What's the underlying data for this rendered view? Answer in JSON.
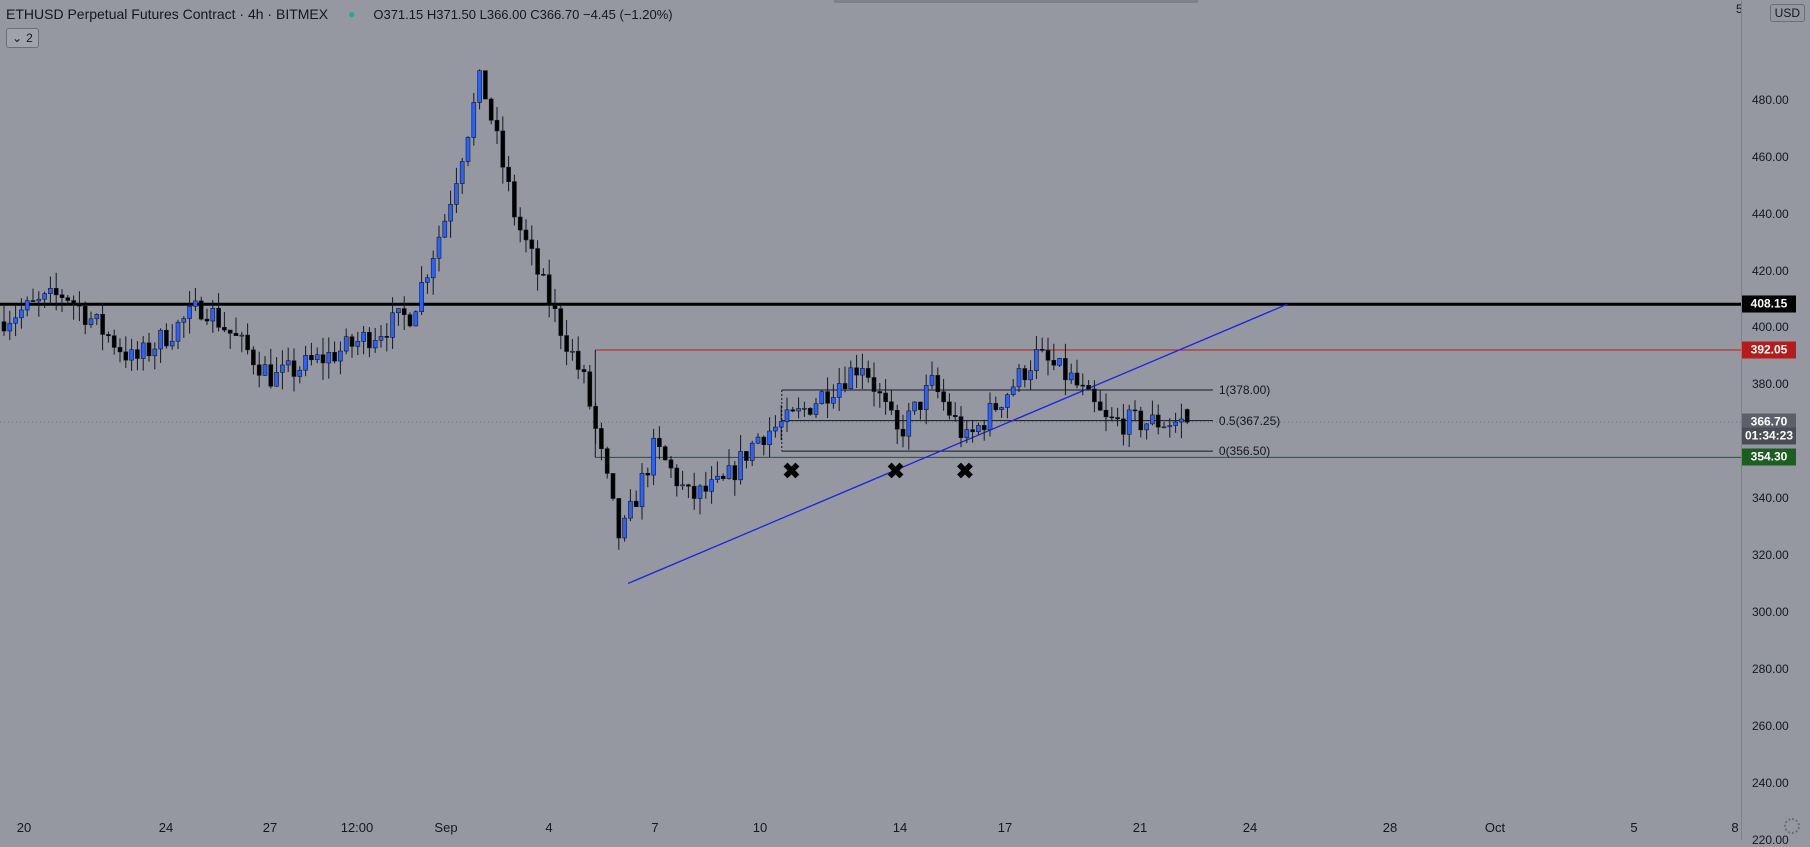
{
  "header": {
    "symbol_title": "ETHUSD Perpetual Futures Contract · 4h · BITMEX",
    "ohlc": "O371.15 H371.50 L366.00 C366.70 −4.45 (−1.20%)",
    "indicator_count": "2",
    "top_axis_cut": "5"
  },
  "price_axis": {
    "currency": "USD",
    "ticks": [
      "480.00",
      "460.00",
      "440.00",
      "420.00",
      "400.00",
      "380.00",
      "340.00",
      "320.00",
      "300.00",
      "280.00",
      "260.00",
      "240.00",
      "220.00"
    ]
  },
  "price_tags": [
    {
      "value": "408.15",
      "bg": "#000000",
      "price": 408.15
    },
    {
      "value": "392.05",
      "bg": "#b71c1c",
      "price": 392.05
    },
    {
      "value": "366.70",
      "bg": "#5d606b",
      "price": 366.7
    },
    {
      "value": "01:34:23",
      "bg": "#4a4d56",
      "price": 362.0
    },
    {
      "value": "354.30",
      "bg": "#1b5e20",
      "price": 354.3
    }
  ],
  "time_axis": [
    "20",
    "24",
    "27",
    "12:00",
    "Sep",
    "4",
    "7",
    "10",
    "14",
    "17",
    "21",
    "24",
    "28",
    "Oct",
    "5",
    "8"
  ],
  "fib_labels": [
    {
      "text": "1(378.00)",
      "price": 378.0
    },
    {
      "text": "0.5(367.25)",
      "price": 367.25
    },
    {
      "text": "0(356.50)",
      "price": 356.5
    }
  ],
  "colors": {
    "background": "#9598a1",
    "up_candle": "#2962ff",
    "down_candle": "#000000",
    "resistance_black": "#000000",
    "resistance_red": "#b71c1c",
    "support_green": "#1b5e20",
    "trendline": "#1e22e0"
  },
  "chart_data": {
    "type": "candlestick",
    "symbol": "ETHUSD",
    "interval": "4h",
    "exchange": "BITMEX",
    "last_close": 366.7,
    "ylim": [
      220,
      500
    ],
    "x_ticks": [
      "20",
      "24",
      "27",
      "12:00",
      "Sep",
      "4",
      "7",
      "10",
      "14",
      "17",
      "21",
      "24",
      "28",
      "Oct",
      "5",
      "8"
    ],
    "anchors": [
      {
        "date": "Aug 19",
        "price": 402
      },
      {
        "date": "Aug 21",
        "price": 412
      },
      {
        "date": "Aug 23",
        "price": 388
      },
      {
        "date": "Aug 25",
        "price": 408
      },
      {
        "date": "Aug 27",
        "price": 382
      },
      {
        "date": "Aug 29",
        "price": 392
      },
      {
        "date": "Aug 31",
        "price": 405
      },
      {
        "date": "Sep 1",
        "price": 440
      },
      {
        "date": "Sep 2",
        "price": 488
      },
      {
        "date": "Sep 3",
        "price": 438
      },
      {
        "date": "Sep 4",
        "price": 408
      },
      {
        "date": "Sep 5",
        "price": 380
      },
      {
        "date": "Sep 6",
        "price": 325
      },
      {
        "date": "Sep 7",
        "price": 358
      },
      {
        "date": "Sep 8",
        "price": 340
      },
      {
        "date": "Sep 9",
        "price": 345
      },
      {
        "date": "Sep 10",
        "price": 362
      },
      {
        "date": "Sep 11",
        "price": 368
      },
      {
        "date": "Sep 13",
        "price": 388
      },
      {
        "date": "Sep 14",
        "price": 362
      },
      {
        "date": "Sep 15",
        "price": 380
      },
      {
        "date": "Sep 16",
        "price": 360
      },
      {
        "date": "Sep 17",
        "price": 375
      },
      {
        "date": "Sep 18",
        "price": 390
      },
      {
        "date": "Sep 19",
        "price": 382
      },
      {
        "date": "Sep 20",
        "price": 366.7
      }
    ],
    "horizontal_lines": [
      {
        "price": 408.15,
        "color": "#000000",
        "style": "solid-thick"
      },
      {
        "price": 392.05,
        "color": "#b71c1c",
        "style": "solid-thin",
        "from_date": "Sep 5"
      },
      {
        "price": 354.3,
        "color": "#1b5e20",
        "style": "solid-thin",
        "from_date": "Sep 5"
      },
      {
        "price": 366.7,
        "color": "#6b6e77",
        "style": "dotted"
      }
    ],
    "fibonacci": {
      "levels": [
        {
          "ratio": 1,
          "price": 378.0
        },
        {
          "ratio": 0.5,
          "price": 367.25
        },
        {
          "ratio": 0,
          "price": 356.5
        }
      ],
      "from_date": "Sep 10",
      "to_date": "Sep 23"
    },
    "trendline": {
      "start": {
        "date": "Sep 6",
        "price": 310
      },
      "end": {
        "date": "Sep 25",
        "price": 408.15
      },
      "color": "#1e22e0"
    },
    "markers": [
      {
        "symbol": "✖",
        "date": "Sep 11",
        "price": 349
      },
      {
        "symbol": "✖",
        "date": "Sep 14",
        "price": 349
      },
      {
        "symbol": "✖",
        "date": "Sep 16",
        "price": 349
      }
    ]
  }
}
